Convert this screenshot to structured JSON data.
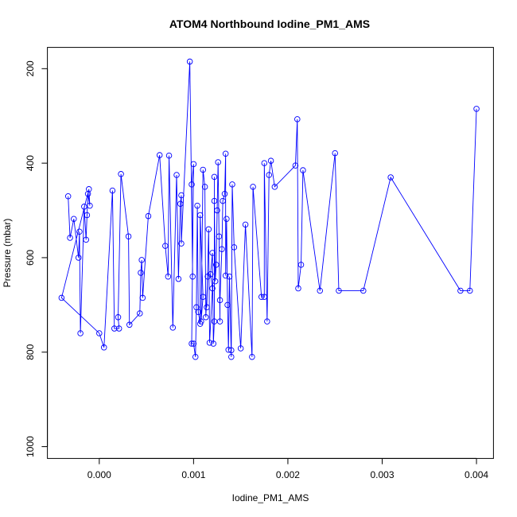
{
  "chart_data": {
    "type": "line",
    "title": "ATOM4 Northbound Iodine_PM1_AMS",
    "xlabel": "Iodine_PM1_AMS",
    "ylabel": "Pressure (mbar)",
    "xlim": [
      -0.00055,
      0.00418
    ],
    "ylim": [
      1025,
      155
    ],
    "y_reversed": true,
    "x_ticks": [
      0.0,
      0.001,
      0.002,
      0.003,
      0.004
    ],
    "x_tick_labels": [
      "0.000",
      "0.001",
      "0.002",
      "0.003",
      "0.004"
    ],
    "y_ticks": [
      200,
      400,
      600,
      800,
      1000
    ],
    "y_tick_labels": [
      "200",
      "400",
      "600",
      "800",
      "1000"
    ],
    "grid": false,
    "series_color": "#0000ff",
    "marker": "open-circle",
    "series": [
      {
        "points": [
          [
            -0.00033,
            470
          ],
          [
            -0.00031,
            558
          ],
          [
            -0.00027,
            518
          ],
          [
            -0.00022,
            600
          ],
          [
            -0.00021,
            545
          ],
          [
            -0.0002,
            760
          ],
          [
            -0.00016,
            492
          ],
          [
            -0.00014,
            562
          ],
          [
            -0.00013,
            510
          ],
          [
            -0.00012,
            465
          ],
          [
            -0.0001,
            490
          ],
          [
            -0.00011,
            455
          ],
          [
            -0.0004,
            685
          ],
          [
            0.0,
            760
          ],
          [
            5e-05,
            790
          ],
          [
            0.00014,
            458
          ],
          [
            0.00016,
            750
          ],
          [
            0.00021,
            750
          ],
          [
            0.0002,
            726
          ],
          [
            0.00023,
            423
          ],
          [
            0.00031,
            555
          ],
          [
            0.00032,
            742
          ],
          [
            0.00043,
            718
          ],
          [
            0.00044,
            632
          ],
          [
            0.00045,
            605
          ],
          [
            0.00046,
            685
          ],
          [
            0.00052,
            512
          ],
          [
            0.00064,
            383
          ],
          [
            0.0007,
            575
          ],
          [
            0.00073,
            640
          ],
          [
            0.00074,
            384
          ],
          [
            0.00078,
            748
          ],
          [
            0.00082,
            425
          ],
          [
            0.00084,
            645
          ],
          [
            0.00086,
            486
          ],
          [
            0.00087,
            468
          ],
          [
            0.00087,
            570
          ],
          [
            0.00096,
            185
          ],
          [
            0.00099,
            640
          ],
          [
            0.00098,
            445
          ],
          [
            0.001,
            402
          ],
          [
            0.00098,
            782
          ],
          [
            0.001,
            782
          ],
          [
            0.00102,
            810
          ],
          [
            0.00103,
            705
          ],
          [
            0.00104,
            490
          ],
          [
            0.00105,
            715
          ],
          [
            0.00107,
            740
          ],
          [
            0.00107,
            510
          ],
          [
            0.0011,
            683
          ],
          [
            0.00108,
            735
          ],
          [
            0.0011,
            414
          ],
          [
            0.00112,
            450
          ],
          [
            0.00113,
            726
          ],
          [
            0.00115,
            640
          ],
          [
            0.00114,
            705
          ],
          [
            0.00116,
            540
          ],
          [
            0.00117,
            780
          ],
          [
            0.0012,
            665
          ],
          [
            0.00118,
            635
          ],
          [
            0.0012,
            590
          ],
          [
            0.00121,
            782
          ],
          [
            0.00122,
            735
          ],
          [
            0.00122,
            429
          ],
          [
            0.00122,
            480
          ],
          [
            0.00123,
            650
          ],
          [
            0.00124,
            615
          ],
          [
            0.00125,
            500
          ],
          [
            0.00126,
            398
          ],
          [
            0.00127,
            555
          ],
          [
            0.00128,
            735
          ],
          [
            0.00128,
            690
          ],
          [
            0.0013,
            582
          ],
          [
            0.00131,
            480
          ],
          [
            0.00133,
            465
          ],
          [
            0.00134,
            380
          ],
          [
            0.00134,
            638
          ],
          [
            0.00135,
            518
          ],
          [
            0.00136,
            700
          ],
          [
            0.00137,
            795
          ],
          [
            0.00138,
            640
          ],
          [
            0.0014,
            810
          ],
          [
            0.0014,
            796
          ],
          [
            0.00141,
            445
          ],
          [
            0.00143,
            578
          ],
          [
            0.0015,
            792
          ],
          [
            0.00155,
            530
          ],
          [
            0.00162,
            810
          ],
          [
            0.00163,
            450
          ],
          [
            0.00172,
            683
          ],
          [
            0.00175,
            683
          ],
          [
            0.00175,
            400
          ],
          [
            0.00178,
            735
          ],
          [
            0.0018,
            425
          ],
          [
            0.00182,
            395
          ],
          [
            0.00186,
            450
          ],
          [
            0.00208,
            405
          ],
          [
            0.0021,
            307
          ],
          [
            0.00211,
            665
          ],
          [
            0.00214,
            615
          ],
          [
            0.00216,
            415
          ],
          [
            0.00234,
            670
          ],
          [
            0.0025,
            379
          ],
          [
            0.00254,
            670
          ],
          [
            0.0028,
            670
          ],
          [
            0.00309,
            430
          ],
          [
            0.00383,
            670
          ],
          [
            0.00393,
            670
          ],
          [
            0.004,
            285
          ]
        ]
      }
    ]
  }
}
